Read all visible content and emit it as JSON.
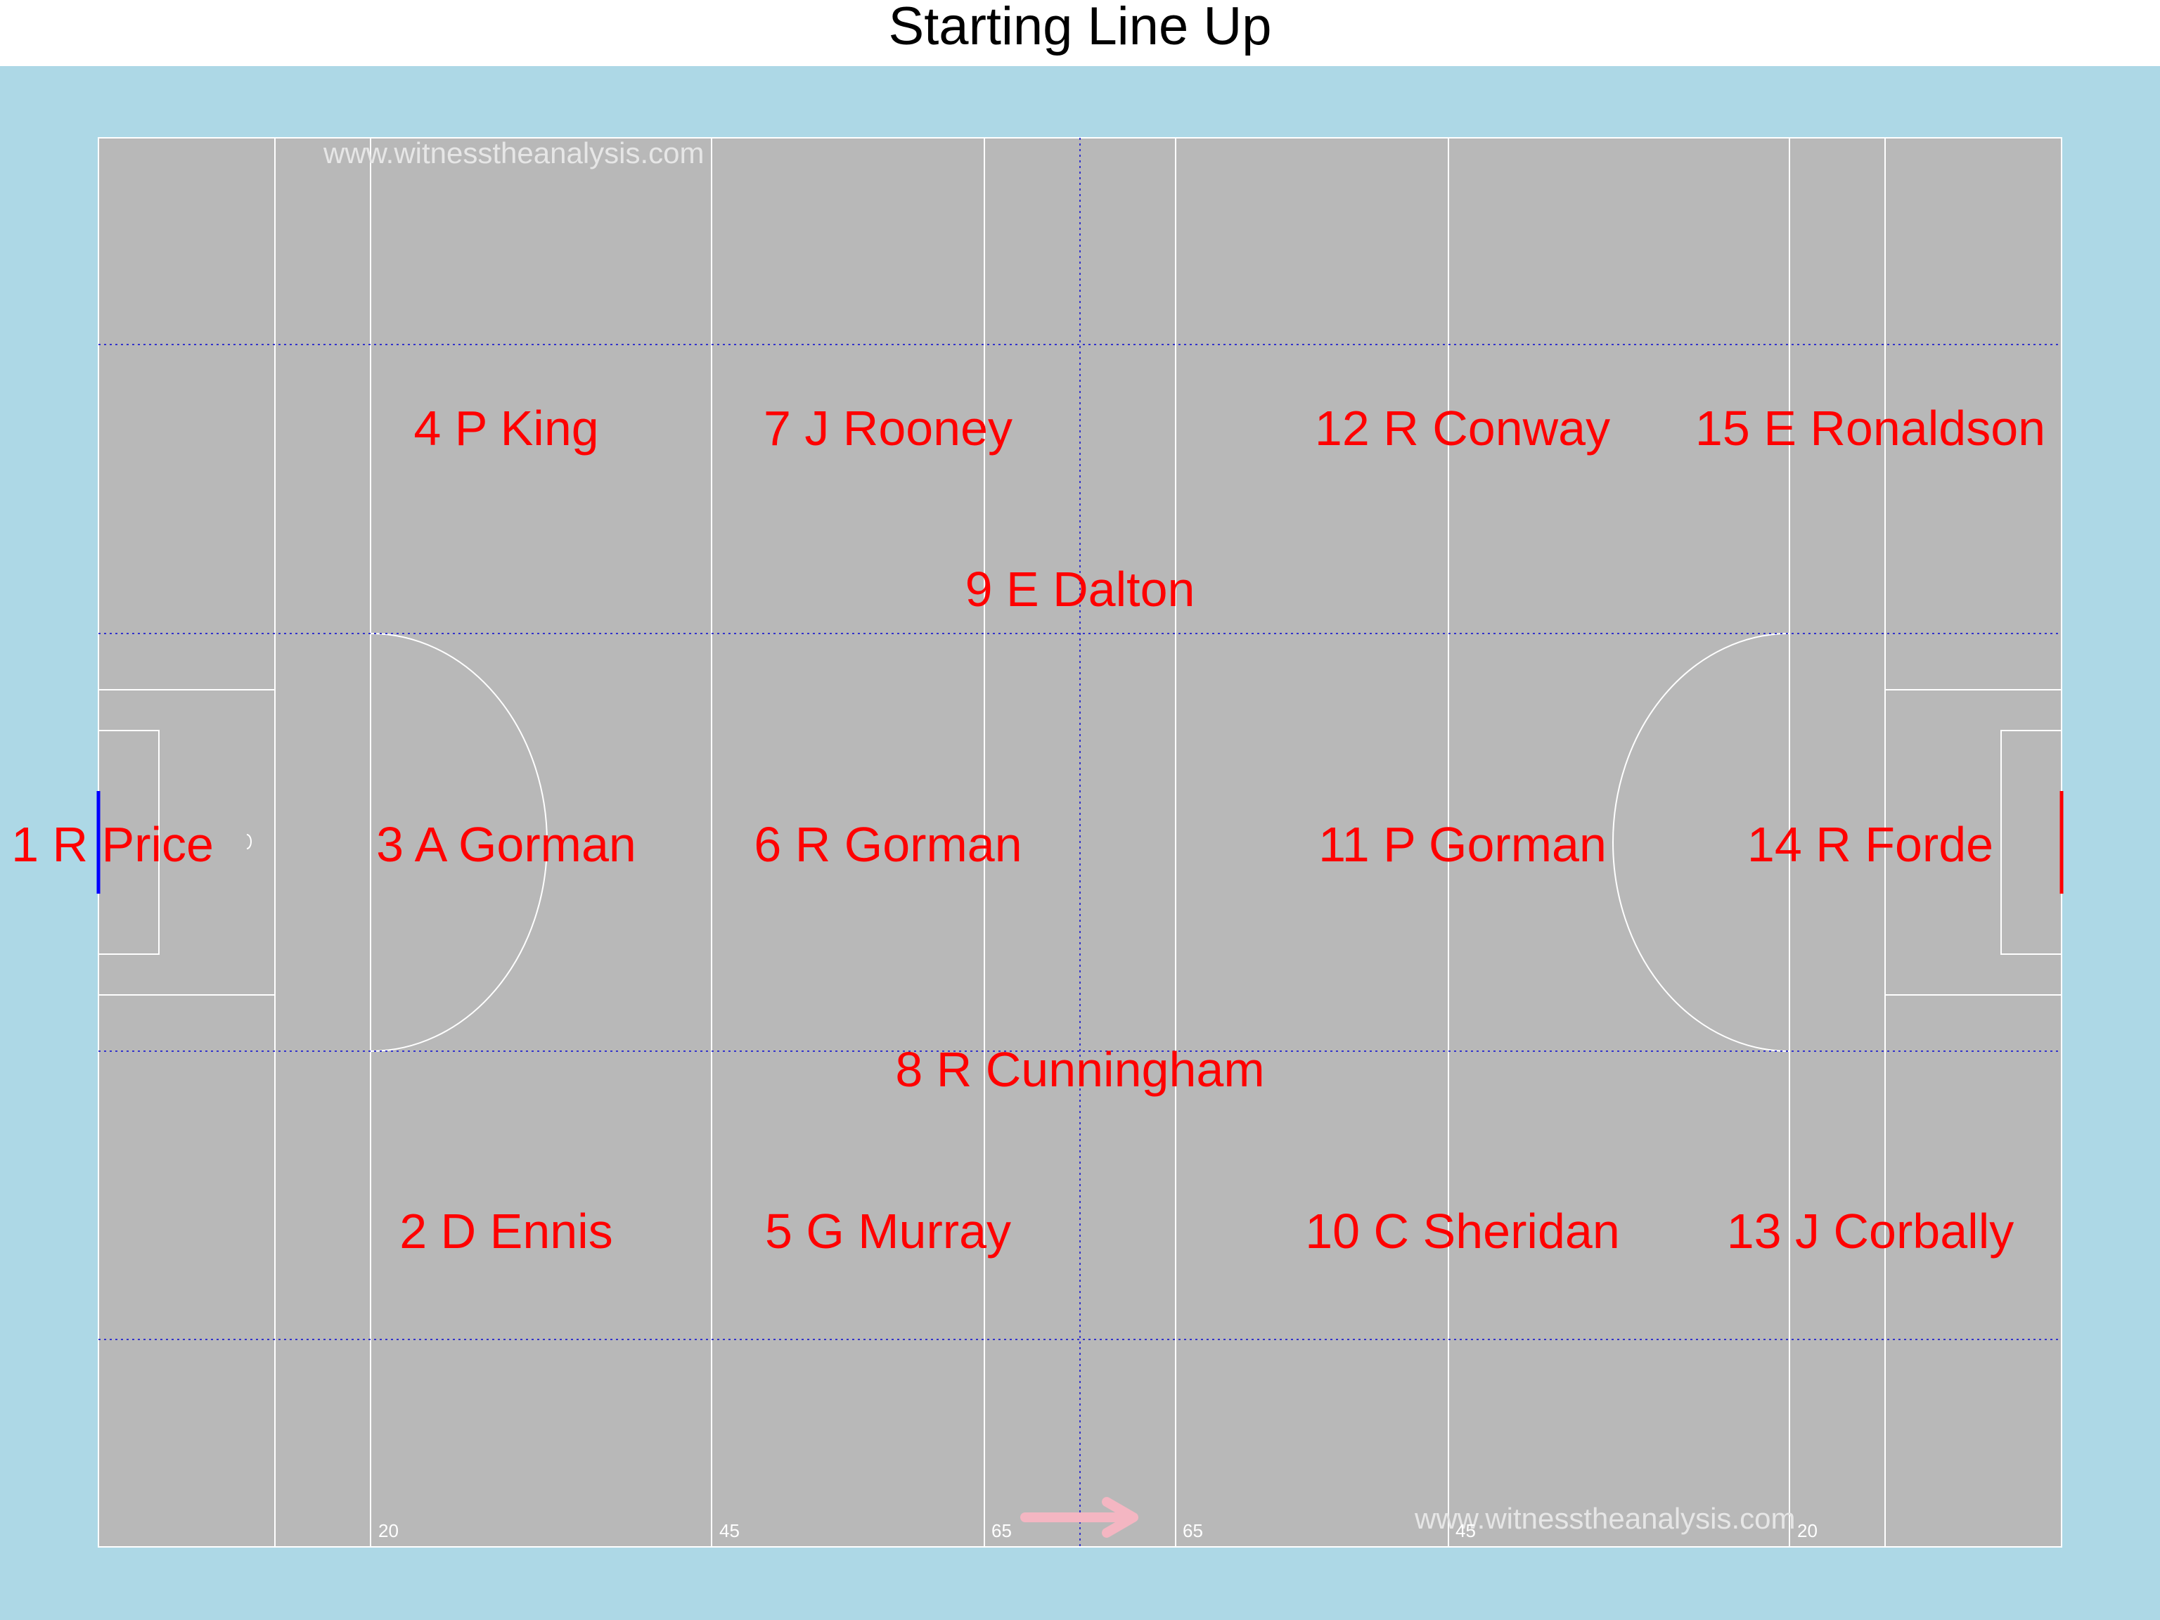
{
  "title": "Starting Line Up",
  "colors": {
    "background": "#add8e6",
    "pitch": "#b8b8b8",
    "lines": "#ffffff",
    "dotted_lines": "#3333cc",
    "player_text": "#ff0000",
    "left_goal": "#0000ff",
    "right_goal": "#ff0000",
    "watermark": "#e6e6e6",
    "arrow": "#f4b6c2"
  },
  "watermark": "www.witnesstheanalysis.com",
  "line_labels": [
    "20",
    "45",
    "65",
    "65",
    "45",
    "20"
  ],
  "direction_arrow": "arrow-right-icon",
  "players": [
    {
      "number": "1",
      "name": "R Price"
    },
    {
      "number": "2",
      "name": "D Ennis"
    },
    {
      "number": "3",
      "name": "A Gorman"
    },
    {
      "number": "4",
      "name": "P King"
    },
    {
      "number": "5",
      "name": "G Murray"
    },
    {
      "number": "6",
      "name": "R Gorman"
    },
    {
      "number": "7",
      "name": "J Rooney"
    },
    {
      "number": "8",
      "name": "R Cunningham"
    },
    {
      "number": "9",
      "name": "E Dalton"
    },
    {
      "number": "10",
      "name": "C Sheridan"
    },
    {
      "number": "11",
      "name": "P Gorman"
    },
    {
      "number": "12",
      "name": "R Conway"
    },
    {
      "number": "13",
      "name": "J Corbally"
    },
    {
      "number": "14",
      "name": "R Forde"
    },
    {
      "number": "15",
      "name": "E Ronaldson"
    }
  ]
}
